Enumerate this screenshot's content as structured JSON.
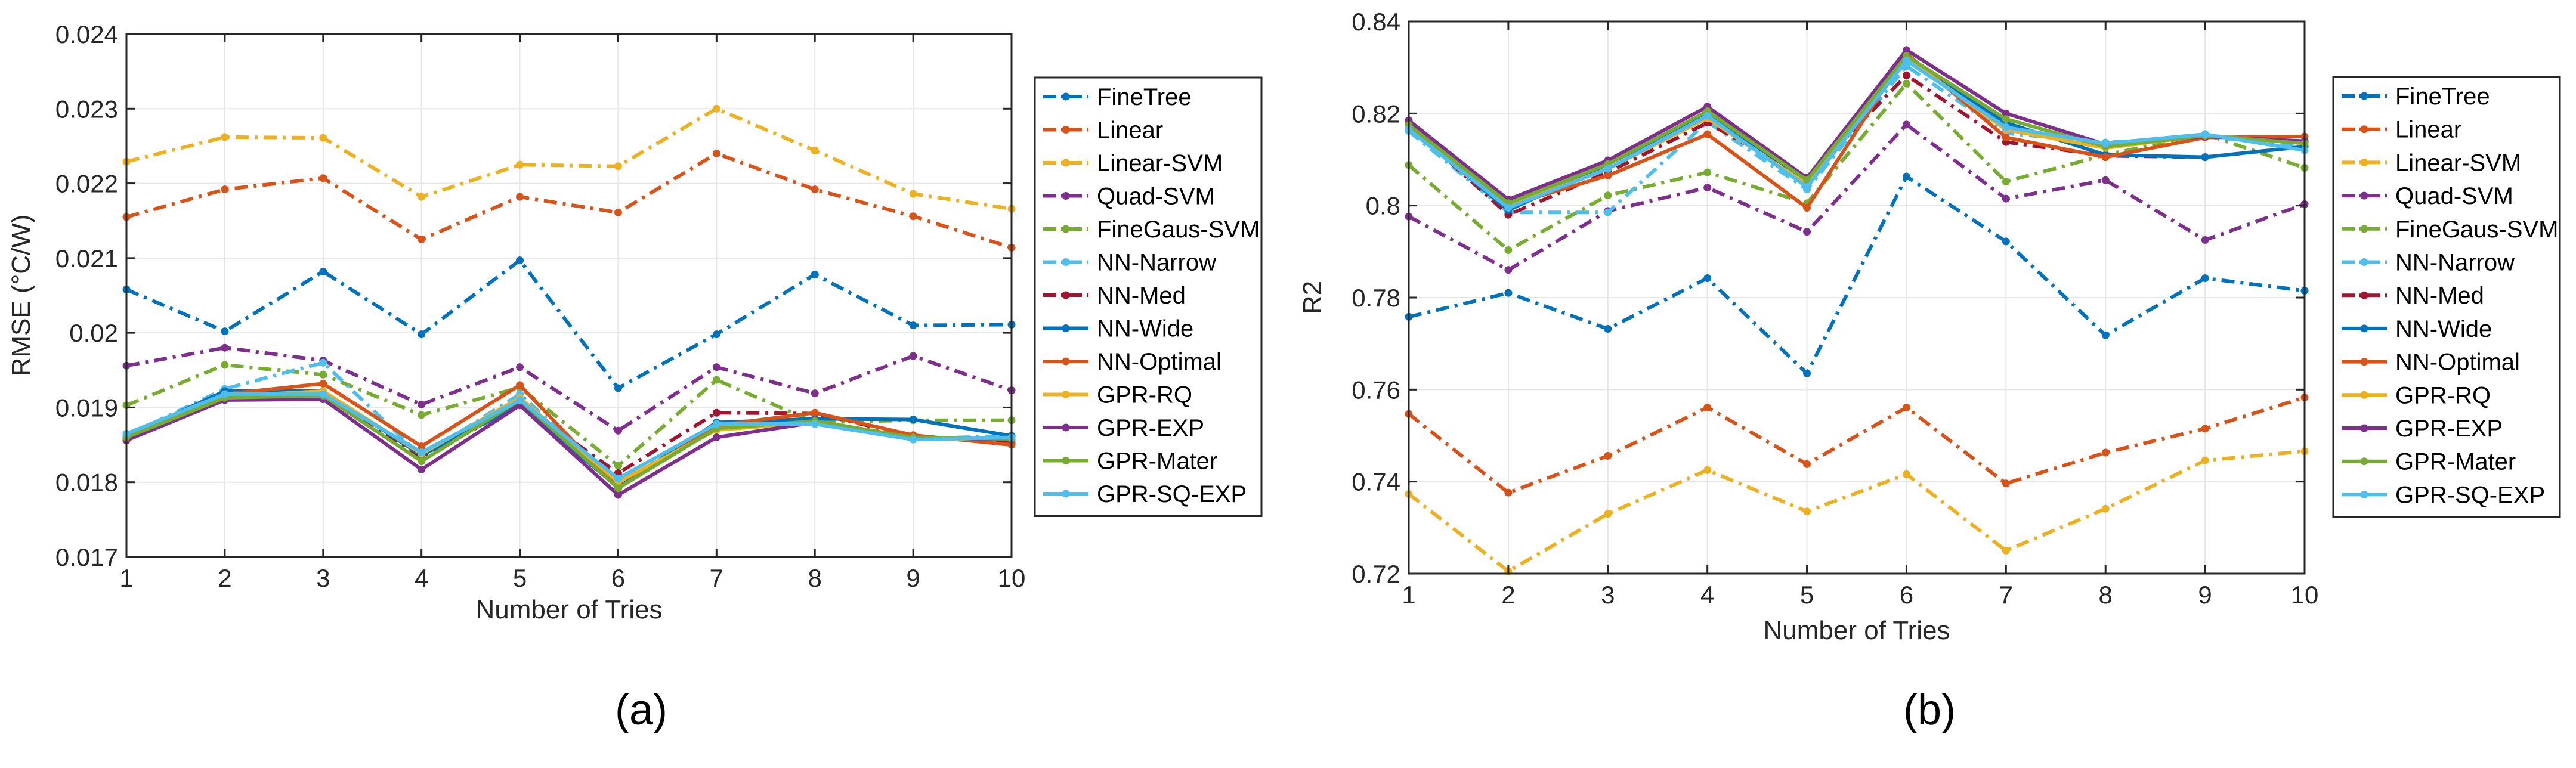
{
  "chart_data": [
    {
      "type": "line",
      "panel_label": "(a)",
      "title": "",
      "xlabel": "Number of Tries",
      "ylabel": "RMSE (°C/W)",
      "xlim": [
        1,
        10
      ],
      "ylim": [
        0.017,
        0.024
      ],
      "grid": true,
      "legend_position": "outside-right",
      "x": [
        1,
        2,
        3,
        4,
        5,
        6,
        7,
        8,
        9,
        10
      ],
      "x_tick_labels": [
        "1",
        "2",
        "3",
        "4",
        "5",
        "6",
        "7",
        "8",
        "9",
        "10"
      ],
      "y_ticks": [
        0.017,
        0.018,
        0.019,
        0.02,
        0.021,
        0.022,
        0.023,
        0.024
      ],
      "y_tick_labels": [
        "0.017",
        "0.018",
        "0.019",
        "0.02",
        "0.021",
        "0.022",
        "0.023",
        "0.024"
      ],
      "series": [
        {
          "name": "FineTree",
          "color": "#0072BD",
          "dash": true,
          "values": [
            0.02058,
            0.02002,
            0.02082,
            0.01998,
            0.02097,
            0.01926,
            0.01998,
            0.02078,
            0.0201,
            0.02011
          ]
        },
        {
          "name": "Linear",
          "color": "#D95319",
          "dash": true,
          "values": [
            0.02155,
            0.02192,
            0.02207,
            0.02125,
            0.02182,
            0.02161,
            0.0224,
            0.02192,
            0.02156,
            0.02114
          ]
        },
        {
          "name": "Linear-SVM",
          "color": "#EDB120",
          "dash": true,
          "values": [
            0.02229,
            0.02262,
            0.02261,
            0.02182,
            0.02225,
            0.02223,
            0.023,
            0.02244,
            0.02186,
            0.02166
          ]
        },
        {
          "name": "Quad-SVM",
          "color": "#7E2F8E",
          "dash": true,
          "values": [
            0.01956,
            0.0198,
            0.01963,
            0.01904,
            0.01954,
            0.01869,
            0.01954,
            0.01919,
            0.01969,
            0.01923
          ]
        },
        {
          "name": "FineGaus-SVM",
          "color": "#77AC30",
          "dash": true,
          "values": [
            0.01903,
            0.01957,
            0.01944,
            0.0189,
            0.01927,
            0.01822,
            0.01937,
            0.0188,
            0.01883,
            0.01883
          ]
        },
        {
          "name": "NN-Narrow",
          "color": "#4DBEEE",
          "dash": true,
          "values": [
            0.01862,
            0.01925,
            0.0196,
            0.01835,
            0.01918,
            0.01797,
            0.01878,
            0.01878,
            0.01858,
            0.01862
          ]
        },
        {
          "name": "NN-Med",
          "color": "#A2142F",
          "dash": true,
          "values": [
            0.01858,
            0.01917,
            0.01916,
            0.01832,
            0.01905,
            0.01812,
            0.01893,
            0.01892,
            0.01862,
            0.01853
          ]
        },
        {
          "name": "NN-Wide",
          "color": "#0072BD",
          "dash": false,
          "values": [
            0.01861,
            0.01922,
            0.01922,
            0.01836,
            0.01903,
            0.01793,
            0.0188,
            0.01885,
            0.01884,
            0.01862
          ]
        },
        {
          "name": "NN-Optimal",
          "color": "#D95319",
          "dash": false,
          "values": [
            0.01856,
            0.01918,
            0.01932,
            0.01848,
            0.0193,
            0.01792,
            0.01876,
            0.01893,
            0.01863,
            0.0185
          ]
        },
        {
          "name": "GPR-RQ",
          "color": "#EDB120",
          "dash": false,
          "values": [
            0.01858,
            0.01915,
            0.01922,
            0.01838,
            0.01913,
            0.018,
            0.0187,
            0.0188,
            0.01858,
            0.01858
          ]
        },
        {
          "name": "GPR-EXP",
          "color": "#7E2F8E",
          "dash": false,
          "values": [
            0.01856,
            0.0191,
            0.01911,
            0.01817,
            0.01903,
            0.01783,
            0.0186,
            0.0188,
            0.0186,
            0.01857
          ]
        },
        {
          "name": "GPR-Mater",
          "color": "#77AC30",
          "dash": false,
          "values": [
            0.0186,
            0.01913,
            0.01916,
            0.01828,
            0.0191,
            0.01792,
            0.01872,
            0.01882,
            0.0186,
            0.01858
          ]
        },
        {
          "name": "GPR-SQ-EXP",
          "color": "#4DBEEE",
          "dash": false,
          "values": [
            0.01865,
            0.01918,
            0.01918,
            0.0184,
            0.0191,
            0.01805,
            0.01878,
            0.01878,
            0.01857,
            0.0186
          ]
        }
      ]
    },
    {
      "type": "line",
      "panel_label": "(b)",
      "title": "",
      "xlabel": "Number of Tries",
      "ylabel": "R2",
      "xlim": [
        1,
        10
      ],
      "ylim": [
        0.72,
        0.84
      ],
      "grid": true,
      "legend_position": "outside-right",
      "x": [
        1,
        2,
        3,
        4,
        5,
        6,
        7,
        8,
        9,
        10
      ],
      "x_tick_labels": [
        "1",
        "2",
        "3",
        "4",
        "5",
        "6",
        "7",
        "8",
        "9",
        "10"
      ],
      "y_ticks": [
        0.72,
        0.74,
        0.76,
        0.78,
        0.8,
        0.82,
        0.84
      ],
      "y_tick_labels": [
        "0.72",
        "0.74",
        "0.76",
        "0.78",
        "0.8",
        "0.82",
        "0.84"
      ],
      "series": [
        {
          "name": "FineTree",
          "color": "#0072BD",
          "dash": true,
          "values": [
            0.7758,
            0.781,
            0.7732,
            0.7842,
            0.7635,
            0.8063,
            0.7922,
            0.7718,
            0.7842,
            0.7815
          ]
        },
        {
          "name": "Linear",
          "color": "#D95319",
          "dash": true,
          "values": [
            0.7547,
            0.7376,
            0.7456,
            0.7561,
            0.7438,
            0.7561,
            0.7396,
            0.7463,
            0.7515,
            0.7583
          ]
        },
        {
          "name": "Linear-SVM",
          "color": "#EDB120",
          "dash": true,
          "values": [
            0.7373,
            0.7205,
            0.733,
            0.7425,
            0.7335,
            0.7416,
            0.725,
            0.7341,
            0.7446,
            0.7466
          ]
        },
        {
          "name": "Quad-SVM",
          "color": "#7E2F8E",
          "dash": true,
          "values": [
            0.7976,
            0.786,
            0.7988,
            0.8039,
            0.7943,
            0.8176,
            0.8015,
            0.8055,
            0.7925,
            0.8003
          ]
        },
        {
          "name": "FineGaus-SVM",
          "color": "#77AC30",
          "dash": true,
          "values": [
            0.8088,
            0.7903,
            0.8022,
            0.8072,
            0.8005,
            0.8265,
            0.8052,
            0.811,
            0.8155,
            0.8082
          ]
        },
        {
          "name": "NN-Narrow",
          "color": "#4DBEEE",
          "dash": true,
          "values": [
            0.8162,
            0.7985,
            0.7985,
            0.8182,
            0.8035,
            0.8303,
            0.8157,
            0.8137,
            0.815,
            0.813
          ]
        },
        {
          "name": "NN-Med",
          "color": "#A2142F",
          "dash": true,
          "values": [
            0.8175,
            0.798,
            0.8072,
            0.818,
            0.806,
            0.8283,
            0.8138,
            0.8108,
            0.8105,
            0.8128
          ]
        },
        {
          "name": "NN-Wide",
          "color": "#0072BD",
          "dash": false,
          "values": [
            0.817,
            0.799,
            0.809,
            0.82,
            0.8055,
            0.8318,
            0.818,
            0.811,
            0.8105,
            0.8128
          ]
        },
        {
          "name": "NN-Optimal",
          "color": "#D95319",
          "dash": false,
          "values": [
            0.8178,
            0.8,
            0.8065,
            0.8155,
            0.7995,
            0.833,
            0.8148,
            0.8105,
            0.8148,
            0.815
          ]
        },
        {
          "name": "GPR-RQ",
          "color": "#EDB120",
          "dash": false,
          "values": [
            0.817,
            0.7998,
            0.808,
            0.819,
            0.8045,
            0.832,
            0.8165,
            0.8125,
            0.8152,
            0.8138
          ]
        },
        {
          "name": "GPR-EXP",
          "color": "#7E2F8E",
          "dash": false,
          "values": [
            0.8185,
            0.8013,
            0.8098,
            0.8215,
            0.806,
            0.8338,
            0.82,
            0.8133,
            0.815,
            0.814
          ]
        },
        {
          "name": "GPR-Mater",
          "color": "#77AC30",
          "dash": false,
          "values": [
            0.8175,
            0.8005,
            0.809,
            0.8205,
            0.8055,
            0.8325,
            0.8188,
            0.8128,
            0.8152,
            0.8135
          ]
        },
        {
          "name": "GPR-SQ-EXP",
          "color": "#4DBEEE",
          "dash": false,
          "values": [
            0.8165,
            0.7995,
            0.808,
            0.8195,
            0.804,
            0.8315,
            0.817,
            0.8135,
            0.8155,
            0.812
          ]
        }
      ]
    }
  ]
}
